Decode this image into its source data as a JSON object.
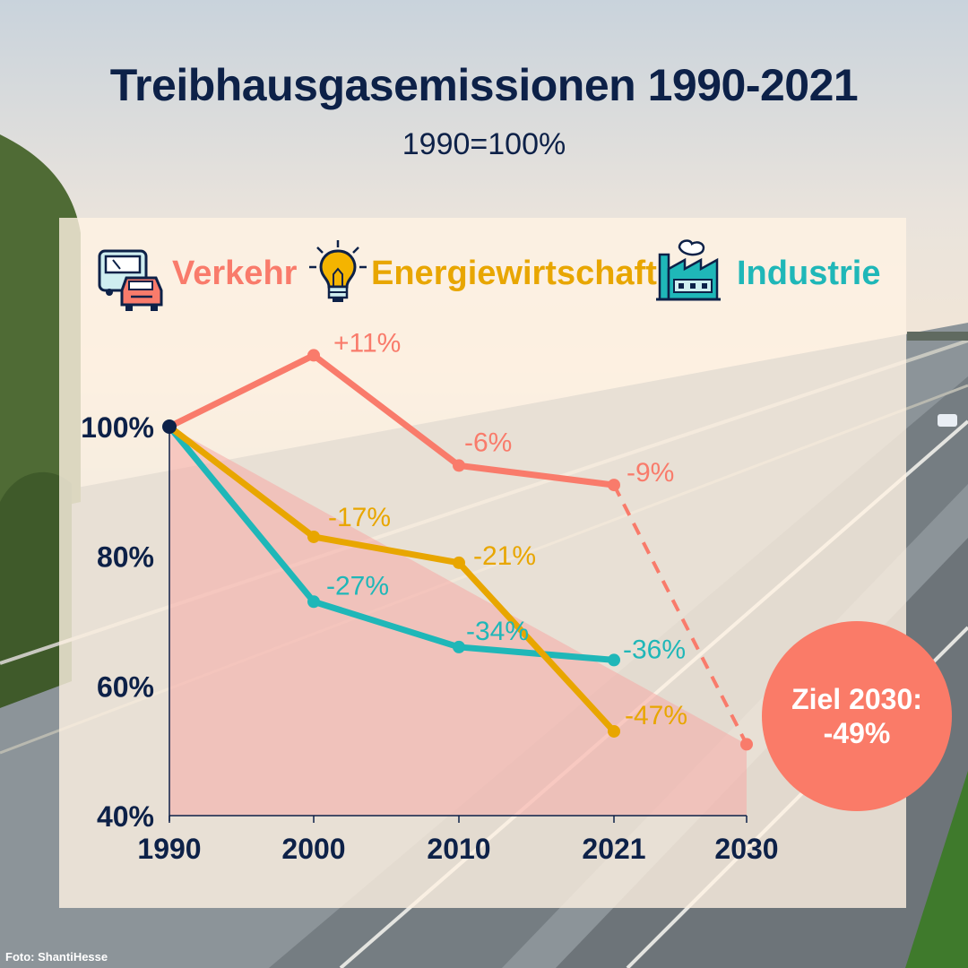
{
  "title": "Treibhausgasemissionen 1990-2021",
  "subtitle": "1990=100%",
  "legend": [
    {
      "label": "Verkehr",
      "icon": "bus-car-icon",
      "color": "#f97b6b"
    },
    {
      "label": "Energiewirtschaft",
      "icon": "lightbulb-icon",
      "color": "#e8a600"
    },
    {
      "label": "Industrie",
      "icon": "factory-icon",
      "color": "#1fb7b8"
    }
  ],
  "goal": {
    "line1": "Ziel 2030:",
    "line2": "-49%",
    "color": "#fa7b68"
  },
  "credit": "Foto: ShantiHesse",
  "colors": {
    "navy": "#0d2148",
    "target_area": "#f5a9a6"
  },
  "chart_data": {
    "type": "line",
    "x": [
      1990,
      2000,
      2010,
      2021,
      2030
    ],
    "x_tick_labels": [
      "1990",
      "2000",
      "2010",
      "2021",
      "2030"
    ],
    "y_tick_labels": [
      "100%",
      "80%",
      "60%",
      "40%"
    ],
    "y_ticks": [
      100,
      80,
      60,
      40
    ],
    "ylim": [
      40,
      100
    ],
    "grid": false,
    "legend_position": "top",
    "series": [
      {
        "name": "Verkehr",
        "color": "#f97b6b",
        "points": [
          {
            "x": 1990,
            "y": 100,
            "label": ""
          },
          {
            "x": 2000,
            "y": 111,
            "label": "+11%"
          },
          {
            "x": 2010,
            "y": 94,
            "label": "-6%"
          },
          {
            "x": 2021,
            "y": 91,
            "label": "-9%"
          }
        ],
        "projection": [
          {
            "x": 2021,
            "y": 91
          },
          {
            "x": 2030,
            "y": 51
          }
        ]
      },
      {
        "name": "Energiewirtschaft",
        "color": "#e8a600",
        "points": [
          {
            "x": 1990,
            "y": 100,
            "label": ""
          },
          {
            "x": 2000,
            "y": 83,
            "label": "-17%"
          },
          {
            "x": 2010,
            "y": 79,
            "label": "-21%"
          },
          {
            "x": 2021,
            "y": 53,
            "label": "-47%"
          }
        ]
      },
      {
        "name": "Industrie",
        "color": "#1fb7b8",
        "points": [
          {
            "x": 1990,
            "y": 100,
            "label": ""
          },
          {
            "x": 2000,
            "y": 73,
            "label": "-27%"
          },
          {
            "x": 2010,
            "y": 66,
            "label": "-34%"
          },
          {
            "x": 2021,
            "y": 64,
            "label": "-36%"
          }
        ]
      }
    ],
    "target_area": {
      "from": {
        "x": 1990,
        "y": 100
      },
      "to": {
        "x": 2030,
        "y": 51
      }
    },
    "origin_point": {
      "x": 1990,
      "y": 100,
      "color": "#0d2148"
    }
  }
}
